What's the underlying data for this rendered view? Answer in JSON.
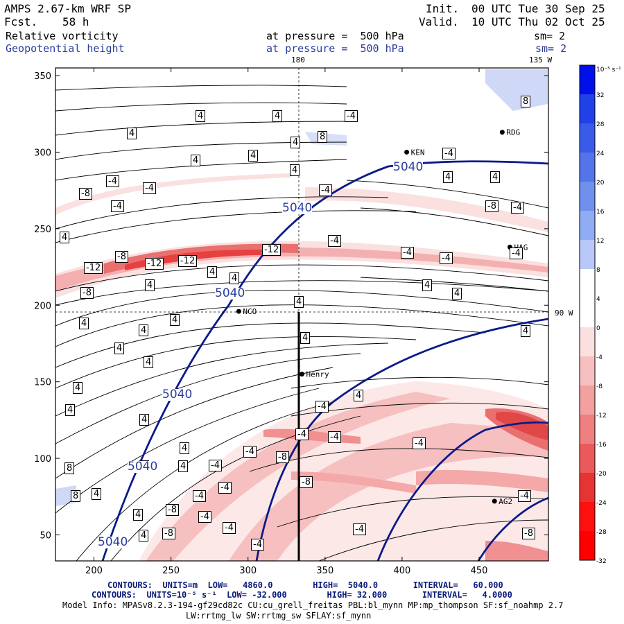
{
  "header": {
    "model_title": "AMPS 2.67-km WRF SP",
    "fcst_label": "Fcst.",
    "fcst_value": "58 h",
    "init_label": "Init.",
    "init_value": "00 UTC Tue 30 Sep 25",
    "valid_label": "Valid.",
    "valid_value": "10 UTC Thu 02 Oct 25",
    "field1_name": "Relative vorticity",
    "field1_level": "at pressure =  500 hPa",
    "field1_smooth": "sm= 2",
    "field2_name": "Geopotential height",
    "field2_level": "at pressure =  500 hPa",
    "field2_smooth": "sm= 2"
  },
  "map_labels": {
    "lon_180": "180",
    "lon_135w": "135 W",
    "lon_90w": "90 W",
    "stations": [
      "NCO",
      "Henry",
      "RDG",
      "KEN",
      "HAG",
      "AG2"
    ]
  },
  "colorbar": {
    "unit": "10⁻⁵ s⁻¹",
    "ticks": [
      "32",
      "28",
      "24",
      "20",
      "16",
      "12",
      "8",
      "4",
      "0",
      "-4",
      "-8",
      "-12",
      "-16",
      "-20",
      "-24",
      "-28",
      "-32"
    ],
    "colors": [
      "#0010e8",
      "#2040e8",
      "#3a5ae8",
      "#5474ea",
      "#7090ee",
      "#90acf2",
      "#b8c8f8",
      "#ffffff",
      "#ffffff",
      "#fbe0e0",
      "#f7c0c0",
      "#f2a0a0",
      "#ee8080",
      "#ea5a5a",
      "#e63434",
      "#ff1010",
      "#ff0000"
    ]
  },
  "chart_data": {
    "type": "contour",
    "title": "Relative vorticity and Geopotential height at 500 hPa",
    "xlim": [
      175,
      495
    ],
    "ylim": [
      33,
      355
    ],
    "xticks": [
      200,
      250,
      300,
      350,
      400,
      450
    ],
    "yticks": [
      50,
      100,
      150,
      200,
      250,
      300,
      350
    ],
    "height_contours": {
      "units": "m",
      "low": 4860.0,
      "high": 5040.0,
      "interval": 60.0,
      "labels": [
        "5040",
        "5040",
        "5040",
        "5040",
        "5040",
        "5040"
      ]
    },
    "vorticity_contours": {
      "units": "10^-5 s^-1",
      "low": -32.0,
      "high": 32.0,
      "interval": 4.0,
      "labels": [
        "4",
        "-4",
        "8",
        "-8",
        "-12"
      ]
    },
    "stations": [
      {
        "name": "NCO",
        "x": 294,
        "y": 196
      },
      {
        "name": "Henry",
        "x": 335,
        "y": 155
      },
      {
        "name": "RDG",
        "x": 465,
        "y": 313
      },
      {
        "name": "KEN",
        "x": 403,
        "y": 300
      },
      {
        "name": "HAG",
        "x": 470,
        "y": 238
      },
      {
        "name": "AG2",
        "x": 460,
        "y": 72
      }
    ]
  },
  "footer": {
    "line1": "CONTOURS:  UNITS=m  LOW=   4860.0        HIGH=  5040.0       INTERVAL=   60.000",
    "line2": "CONTOURS:  UNITS=10⁻⁵ s⁻¹  LOW= -32.000        HIGH= 32.000       INTERVAL=   4.0000",
    "line3": "Model Info: MPASv8.2.3-194-gf29cd82c CU:cu_grell_freitas PBL:bl_mynn MP:mp_thompson SF:sf_noahmp 2.7",
    "line4": "LW:rrtmg_lw SW:rrtmg_sw SFLAY:sf_mynn"
  }
}
